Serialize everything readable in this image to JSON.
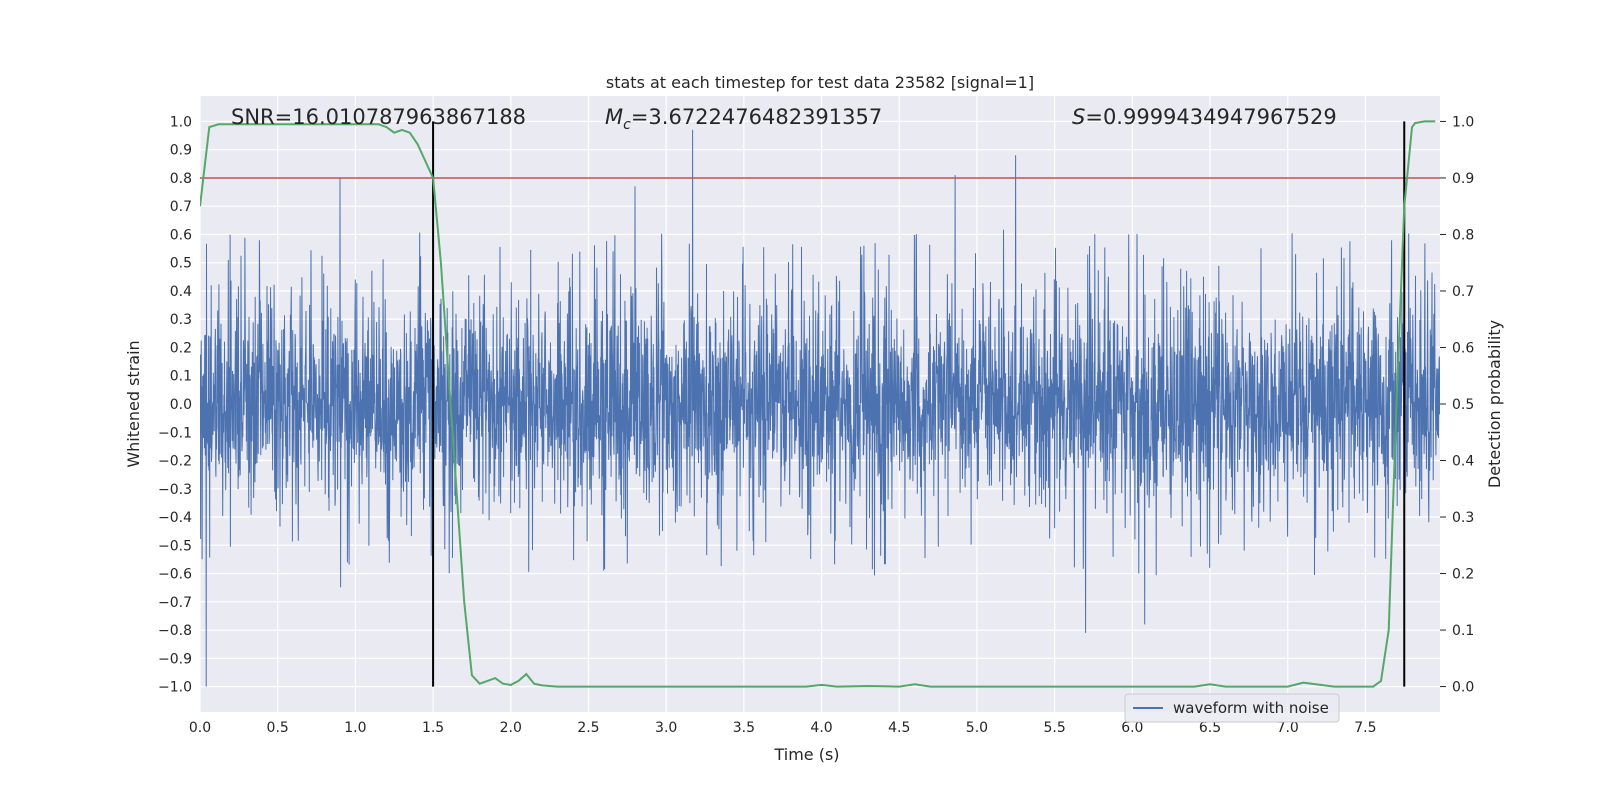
{
  "chart_data": {
    "type": "line",
    "title": "stats at each timestep for test data 23582 [signal=1]",
    "xlabel": "Time (s)",
    "ylabel": "Whitened strain",
    "y2label": "Detection probability",
    "xlim": [
      0.0,
      7.98
    ],
    "ylim": [
      -1.09,
      1.09
    ],
    "y2lim": [
      -0.045,
      1.045
    ],
    "grid": true,
    "x_ticks": [
      0.0,
      0.5,
      1.0,
      1.5,
      2.0,
      2.5,
      3.0,
      3.5,
      4.0,
      4.5,
      5.0,
      5.5,
      6.0,
      6.5,
      7.0,
      7.5
    ],
    "x_tick_labels": [
      "0.0",
      "0.5",
      "1.0",
      "1.5",
      "2.0",
      "2.5",
      "3.0",
      "3.5",
      "4.0",
      "4.5",
      "5.0",
      "5.5",
      "6.0",
      "6.5",
      "7.0",
      "7.5"
    ],
    "y_ticks": [
      1.0,
      0.9,
      0.8,
      0.7,
      0.6,
      0.5,
      0.4,
      0.3,
      0.2,
      0.1,
      0.0,
      -0.1,
      -0.2,
      -0.3,
      -0.4,
      -0.5,
      -0.6,
      -0.7,
      -0.8,
      -0.9,
      -1.0
    ],
    "y_tick_labels": [
      "1.0",
      "0.9",
      "0.8",
      "0.7",
      "0.6",
      "0.5",
      "0.4",
      "0.3",
      "0.2",
      "0.1",
      "0.0",
      "−0.1",
      "−0.2",
      "−0.3",
      "−0.4",
      "−0.5",
      "−0.6",
      "−0.7",
      "−0.8",
      "−0.9",
      "−1.0"
    ],
    "y2_ticks": [
      1.0,
      0.9,
      0.8,
      0.7,
      0.6,
      0.5,
      0.4,
      0.3,
      0.2,
      0.1,
      0.0
    ],
    "y2_tick_labels": [
      "1.0",
      "0.9",
      "0.8",
      "0.7",
      "0.6",
      "0.5",
      "0.4",
      "0.3",
      "0.2",
      "0.1",
      "0.0"
    ],
    "annotations": {
      "snr": "SNR=16.010787963867188",
      "mc_prefix": "M",
      "mc_sub": "c",
      "mc_value": "=3.6722476482391357",
      "s_prefix": "S",
      "s_value": "=0.9999434947967529"
    },
    "legend": {
      "location": "lower-right",
      "entries": [
        "waveform with noise"
      ]
    },
    "series": [
      {
        "name": "waveform with noise",
        "axis": "left",
        "color": "#4c72b0",
        "style": "dense noise, envelope approx ±0.35 with spikes",
        "notable_peaks": [
          {
            "x": 0.9,
            "y": 0.8
          },
          {
            "x": 2.8,
            "y": 0.77
          },
          {
            "x": 3.17,
            "y": 0.97
          },
          {
            "x": 4.86,
            "y": 0.81
          },
          {
            "x": 5.25,
            "y": 0.88
          },
          {
            "x": 0.04,
            "y": -1.0
          },
          {
            "x": 5.7,
            "y": -0.81
          },
          {
            "x": 6.08,
            "y": -0.78
          }
        ]
      },
      {
        "name": "detection probability",
        "axis": "right",
        "color": "#55a868",
        "x": [
          0.0,
          0.06,
          0.12,
          0.3,
          0.6,
          0.9,
          1.15,
          1.2,
          1.25,
          1.3,
          1.35,
          1.4,
          1.45,
          1.5,
          1.55,
          1.6,
          1.65,
          1.7,
          1.75,
          1.8,
          1.85,
          1.9,
          1.95,
          2.0,
          2.05,
          2.1,
          2.15,
          2.2,
          2.25,
          2.3,
          2.5,
          3.0,
          3.5,
          3.9,
          4.0,
          4.1,
          4.3,
          4.5,
          4.6,
          4.7,
          5.0,
          5.5,
          6.0,
          6.4,
          6.5,
          6.6,
          7.0,
          7.1,
          7.3,
          7.5,
          7.55,
          7.6,
          7.65,
          7.7,
          7.75,
          7.8,
          7.82,
          7.88,
          7.95
        ],
        "values": [
          0.85,
          0.99,
          0.995,
          0.995,
          0.995,
          0.995,
          0.995,
          0.99,
          0.98,
          0.985,
          0.98,
          0.96,
          0.93,
          0.9,
          0.75,
          0.55,
          0.35,
          0.15,
          0.02,
          0.005,
          0.01,
          0.015,
          0.005,
          0.003,
          0.01,
          0.022,
          0.005,
          0.002,
          0.001,
          0.0,
          0.0,
          0.0,
          0.0,
          0.0,
          0.003,
          0.0,
          0.001,
          0.0,
          0.004,
          0.0,
          0.0,
          0.0,
          0.0,
          0.0,
          0.004,
          0.0,
          0.0,
          0.007,
          0.0,
          0.0,
          0.0,
          0.01,
          0.1,
          0.5,
          0.85,
          0.99,
          0.997,
          1.0,
          1.0
        ]
      }
    ],
    "hlines": [
      {
        "y2": 0.9,
        "color": "#c44e52"
      }
    ],
    "vlines": [
      {
        "x": 1.5,
        "color": "#000000"
      },
      {
        "x": 7.75,
        "color": "#000000"
      }
    ]
  }
}
